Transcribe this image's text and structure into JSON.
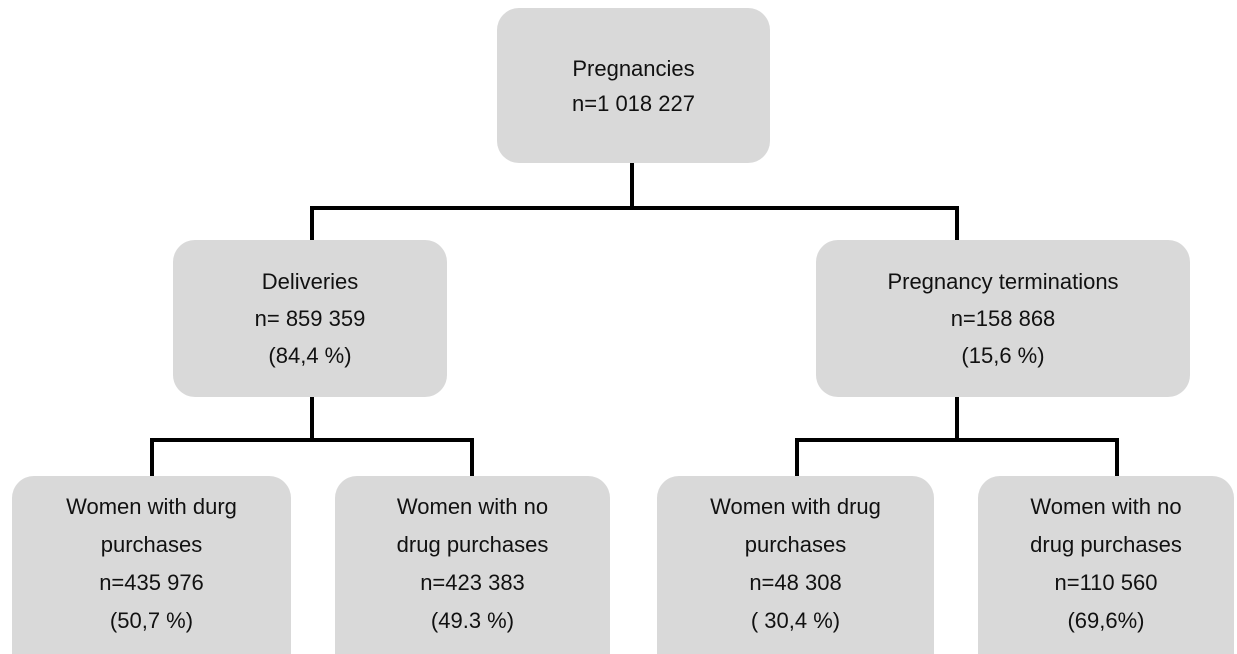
{
  "nodes": [
    {
      "lines": [
        "Pregnancies",
        "n=1 018 227"
      ]
    },
    {
      "lines": [
        "Deliveries",
        "n= 859 359",
        "(84,4 %)"
      ]
    },
    {
      "lines": [
        "Pregnancy terminations",
        "n=158 868",
        "(15,6 %)"
      ]
    },
    {
      "lines": [
        "Women with durg",
        "purchases",
        "n=435 976",
        "(50,7 %)"
      ]
    },
    {
      "lines": [
        "Women with no",
        "drug purchases",
        "n=423 383",
        "(49.3 %)"
      ]
    },
    {
      "lines": [
        "Women with drug",
        "purchases",
        "n=48 308",
        "( 30,4 %)"
      ]
    },
    {
      "lines": [
        "Women with no",
        "drug purchases",
        "n=110 560",
        "(69,6%)"
      ]
    }
  ]
}
